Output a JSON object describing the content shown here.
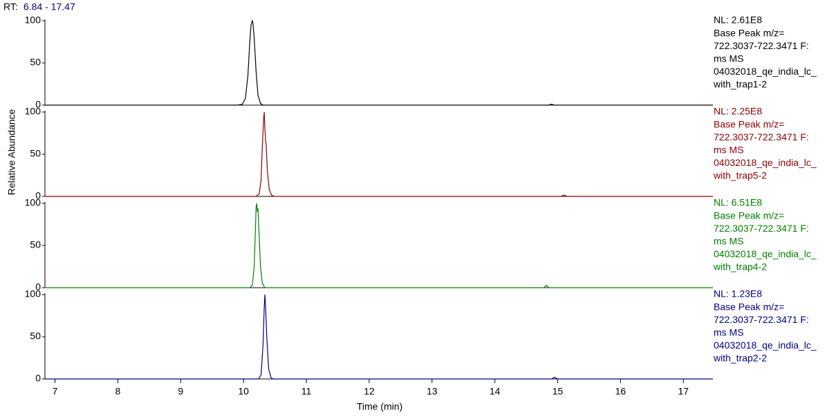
{
  "rt_label": "RT:",
  "rt_range": "6.84 - 17.47",
  "ylabel": "Relative Abundance",
  "chart_data": [
    {
      "type": "line",
      "color": "#000000",
      "xlim": [
        6.84,
        17.47
      ],
      "ylim": [
        0,
        100
      ],
      "yticks": [
        0,
        50,
        100
      ],
      "x": [
        6.84,
        9.9,
        9.98,
        10.03,
        10.07,
        10.1,
        10.12,
        10.14,
        10.15,
        10.17,
        10.2,
        10.23,
        10.27,
        10.31,
        14.85,
        14.9,
        14.95,
        17.47
      ],
      "values": [
        0,
        0,
        1,
        8,
        35,
        75,
        95,
        100,
        97,
        80,
        40,
        12,
        2,
        0,
        0,
        1,
        0,
        0
      ],
      "legend_lines": [
        "NL: 2.61E8",
        "Base Peak m/z=",
        "722.3037-722.3471 F:",
        "ms   MS",
        "04032018_qe_india_lc_",
        "with_trap1-2"
      ]
    },
    {
      "type": "line",
      "color": "#8b0000",
      "xlim": [
        6.84,
        17.47
      ],
      "ylim": [
        0,
        100
      ],
      "yticks": [
        0,
        50,
        100
      ],
      "x": [
        6.84,
        10.2,
        10.25,
        10.28,
        10.3,
        10.32,
        10.33,
        10.34,
        10.35,
        10.36,
        10.38,
        10.41,
        10.45,
        10.5,
        15.05,
        15.1,
        15.15,
        17.47
      ],
      "values": [
        0,
        0,
        3,
        20,
        60,
        92,
        100,
        80,
        68,
        62,
        30,
        8,
        1,
        0,
        0,
        1.5,
        0,
        0
      ],
      "legend_lines": [
        "NL: 2.25E8",
        "Base Peak m/z=",
        "722.3037-722.3471 F:",
        "ms   MS",
        "04032018_qe_india_lc_",
        "with_trap5-2"
      ]
    },
    {
      "type": "line",
      "color": "#008000",
      "xlim": [
        6.84,
        17.47
      ],
      "ylim": [
        0,
        100
      ],
      "yticks": [
        0,
        50,
        100
      ],
      "x": [
        6.84,
        10.1,
        10.14,
        10.17,
        10.19,
        10.2,
        10.21,
        10.22,
        10.23,
        10.25,
        10.27,
        10.3,
        10.34,
        14.78,
        14.82,
        14.86,
        17.47
      ],
      "values": [
        0,
        0,
        3,
        25,
        70,
        95,
        100,
        90,
        94,
        60,
        25,
        5,
        0,
        0,
        3,
        0,
        0
      ],
      "legend_lines": [
        "NL: 6.51E8",
        "Base Peak m/z=",
        "722.3037-722.3471 F:",
        "ms   MS",
        "04032018_qe_india_lc_",
        "with_trap4-2"
      ]
    },
    {
      "type": "line",
      "color": "#000080",
      "xlim": [
        6.84,
        17.47
      ],
      "ylim": [
        0,
        100
      ],
      "yticks": [
        0,
        50,
        100
      ],
      "x": [
        6.84,
        10.24,
        10.28,
        10.31,
        10.33,
        10.34,
        10.35,
        10.37,
        10.4,
        10.44,
        10.48,
        14.9,
        14.95,
        15.0,
        17.47
      ],
      "values": [
        0,
        0,
        5,
        40,
        85,
        100,
        88,
        50,
        12,
        1,
        0,
        0,
        2,
        0,
        0
      ],
      "legend_lines": [
        "NL: 1.23E8",
        "Base Peak m/z=",
        "722.3037-722.3471 F:",
        "ms   MS",
        "04032018_qe_india_lc_",
        "with_trap2-2"
      ],
      "xlabel": "Time (min)",
      "xticks": [
        7,
        8,
        9,
        10,
        11,
        12,
        13,
        14,
        15,
        16,
        17
      ]
    }
  ]
}
